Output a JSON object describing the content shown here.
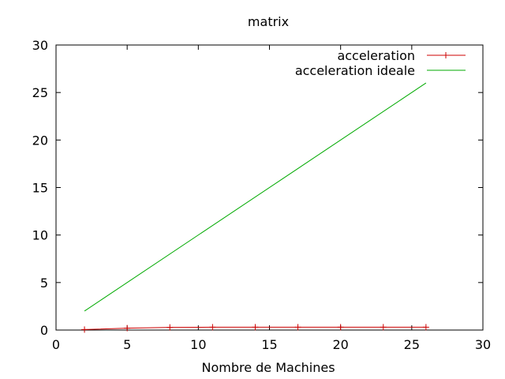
{
  "chart_data": {
    "type": "line",
    "title": "matrix",
    "xlabel": "Nombre de Machines",
    "ylabel": "",
    "xlim": [
      0,
      30
    ],
    "ylim": [
      0,
      30
    ],
    "xticks": [
      0,
      5,
      10,
      15,
      20,
      25,
      30
    ],
    "yticks": [
      0,
      5,
      10,
      15,
      20,
      25,
      30
    ],
    "grid": false,
    "legend_position": "top-right",
    "series": [
      {
        "name": "acceleration",
        "color": "#cc0000",
        "marker": "plus",
        "x": [
          2,
          5,
          8,
          11,
          14,
          17,
          20,
          23,
          26
        ],
        "y": [
          0.05,
          0.2,
          0.28,
          0.3,
          0.3,
          0.3,
          0.3,
          0.3,
          0.3
        ]
      },
      {
        "name": "acceleration ideale",
        "color": "#00aa00",
        "marker": "none",
        "x": [
          2,
          26
        ],
        "y": [
          2,
          26
        ]
      }
    ]
  }
}
